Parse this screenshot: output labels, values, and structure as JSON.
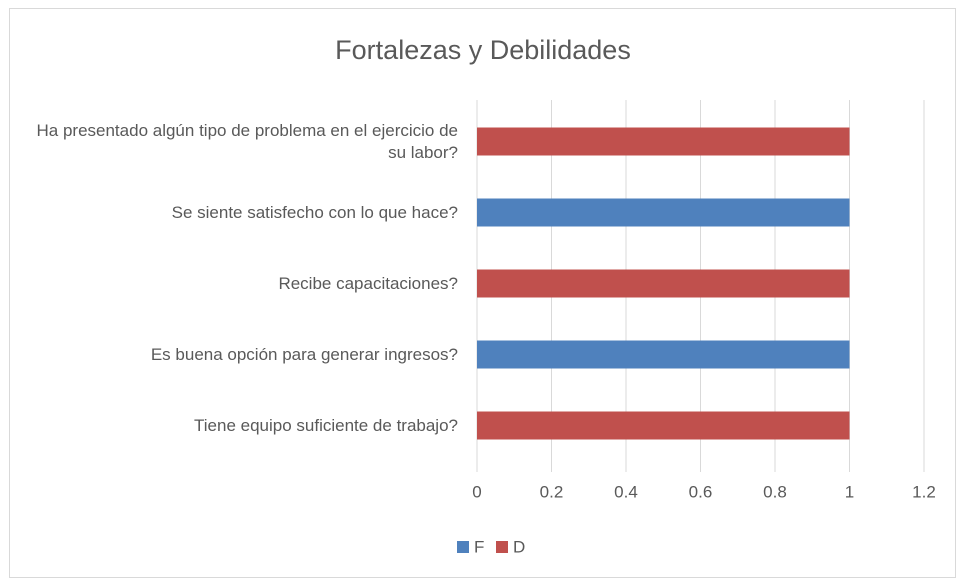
{
  "chart_data": {
    "type": "bar",
    "orientation": "horizontal",
    "title": "Fortalezas  y Debilidades",
    "categories": [
      "Ha presentado algún tipo de problema en el ejercicio de su labor?",
      "Se siente satisfecho con lo que hace?",
      "Recibe capacitaciones?",
      "Es buena opción para generar ingresos?",
      "Tiene equipo suficiente de trabajo?"
    ],
    "series": [
      {
        "name": "F",
        "color": "#4f81bd",
        "values": [
          null,
          1,
          null,
          1,
          null
        ]
      },
      {
        "name": "D",
        "color": "#c0504d",
        "values": [
          1,
          null,
          1,
          null,
          1
        ]
      }
    ],
    "xlim": [
      0,
      1.2
    ],
    "xticks": [
      0,
      0.2,
      0.4,
      0.6,
      0.8,
      1,
      1.2
    ],
    "grid": true,
    "legend": "bottom"
  }
}
